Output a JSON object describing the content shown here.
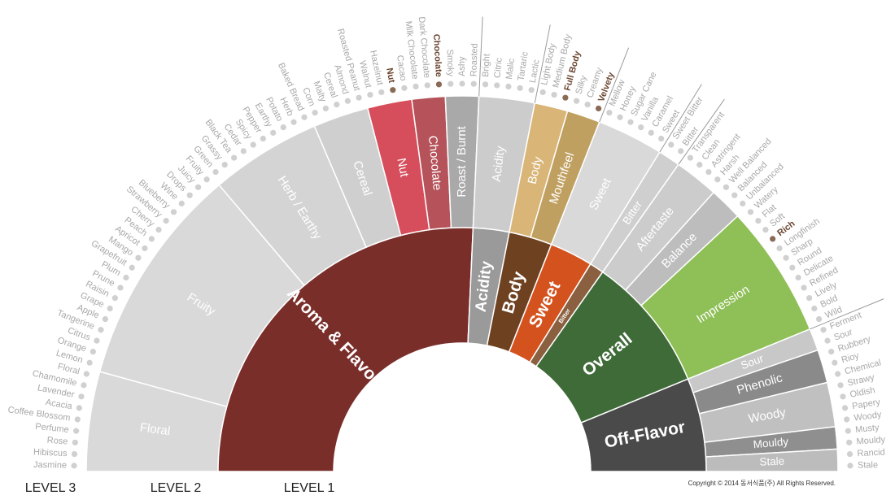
{
  "groups": [
    {
      "label": "Aroma & Flavor",
      "color": "#7a2e2a",
      "children": [
        {
          "label": "Floral",
          "color": "#d9d9d9",
          "terms": [
            "Jasmine",
            "Hibiscus",
            "Rose",
            "Perfume",
            "Coffee Blossom",
            "Acacia",
            "Lavender",
            "Chamomile",
            "Floral"
          ]
        },
        {
          "label": "Fruity",
          "color": "#d9d9d9",
          "terms": [
            "Lemon",
            "Orange",
            "Citrus",
            "Tangerine",
            "Apple",
            "Grape",
            "Raisin",
            "Prune",
            "Plum",
            "Grapefruit",
            "Mango",
            "Apricot",
            "Peach",
            "Cherry",
            "Strawberry",
            "Blueberry",
            "Wine",
            "Drops",
            "Juicy",
            "Fruity"
          ]
        },
        {
          "label": "Herb / Earthy",
          "color": "#d4d4d4",
          "terms": [
            "Green",
            "Grassy",
            "Black Tea",
            "Cedar",
            "Spicy",
            "Pepper",
            "Earthy",
            "Potato",
            "Herb",
            "Baked Bread"
          ]
        },
        {
          "label": "Cereal",
          "color": "#cfcfcf",
          "terms": [
            "Corn",
            "Malty",
            "Cereal",
            "Almond",
            "Roasted Peanut"
          ]
        },
        {
          "label": "Nut",
          "color": "#d64d5c",
          "terms": [
            "Walnut",
            "Hazelnut",
            "Nut",
            "Cacao"
          ]
        },
        {
          "label": "Chocolate",
          "color": "#b5525a",
          "terms": [
            "Milk Chocolate",
            "Dark Chocolate",
            "Chocolate"
          ]
        },
        {
          "label": "Roast / Burnt",
          "color": "#a9a9a9",
          "terms": [
            "Smoky",
            "Ashy",
            "Roasted"
          ]
        }
      ]
    },
    {
      "label": "Acidity",
      "color": "#9a9a9a",
      "children": [
        {
          "label": "Acidity",
          "color": "#cccccc",
          "terms": [
            "Bright",
            "Citric",
            "Malic",
            "Tartaric",
            "Lactic"
          ]
        }
      ]
    },
    {
      "label": "Body",
      "color": "#6e4120",
      "children": [
        {
          "label": "Body",
          "color": "#d9b577",
          "terms": [
            "Light Body",
            "Medium Body",
            "Full Body"
          ]
        },
        {
          "label": "Mouthfeel",
          "color": "#c0a060",
          "terms": [
            "Silky",
            "Creamy",
            "Velvety"
          ]
        }
      ]
    },
    {
      "label": "Sweet",
      "color": "#d4521e",
      "children": [
        {
          "label": "Sweet",
          "color": "#d9d9d9",
          "terms": [
            "Mellow",
            "Honey",
            "Sugar Cane",
            "Vanilla",
            "Caramel",
            "Sweet"
          ]
        }
      ]
    },
    {
      "label": "Bitter",
      "color": "#8a6040",
      "children": [
        {
          "label": "Bitter",
          "color": "#cfcfcf",
          "terms": [
            "Sweet Bitter",
            "Bitter"
          ]
        }
      ]
    },
    {
      "label": "Overall",
      "color": "#3f6b38",
      "children": [
        {
          "label": "Aftertaste",
          "color": "#cccccc",
          "terms": [
            "Transparent",
            "Clean",
            "Astringent",
            "Harsh"
          ]
        },
        {
          "label": "Balance",
          "color": "#bdbdbd",
          "terms": [
            "Well Balanced",
            "Balanced",
            "Unbalanced"
          ]
        },
        {
          "label": "Impression",
          "color": "#8fbf57",
          "terms": [
            "Watery",
            "Flat",
            "Soft",
            "Rich",
            "Longfinish",
            "Sharp",
            "Round",
            "Delicate",
            "Refined",
            "Lively",
            "Bold",
            "Wild"
          ]
        }
      ]
    },
    {
      "label": "Off-Flavor",
      "color": "#4a4a4a",
      "children": [
        {
          "label": "Sour",
          "color": "#c8c8c8",
          "terms": [
            "Ferment",
            "Sour"
          ]
        },
        {
          "label": "Phenolic",
          "color": "#8a8a8a",
          "terms": [
            "Rubbery",
            "Rioy",
            "Chemical"
          ]
        },
        {
          "label": "Woody",
          "color": "#c0c0c0",
          "terms": [
            "Strawy",
            "Oldish",
            "Papery",
            "Woody"
          ]
        },
        {
          "label": "Mouldy",
          "color": "#8f8f8f",
          "terms": [
            "Musty",
            "Mouldy"
          ]
        },
        {
          "label": "Stale",
          "color": "#bcbcbc",
          "terms": [
            "Rancid",
            "Stale"
          ]
        }
      ]
    }
  ],
  "highlighted": [
    "Nut",
    "Chocolate",
    "Full Body",
    "Velvety",
    "Rich"
  ],
  "level_labels": [
    "LEVEL 3",
    "LEVEL 2",
    "LEVEL 1"
  ],
  "copyright": "Copyright © 2014 동서식품(주) All Rights Reserved."
}
